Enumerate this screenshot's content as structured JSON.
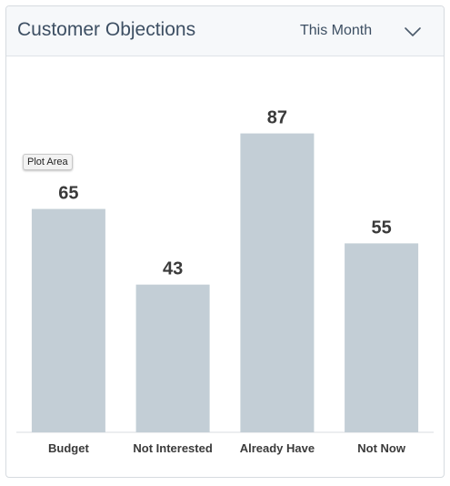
{
  "header": {
    "title": "Customer Objections",
    "period_selected": "This Month"
  },
  "icons": {
    "dropdown": "chevron-down-icon"
  },
  "tooltip": {
    "text": "Plot Area"
  },
  "colors": {
    "bar": "#c3ced6",
    "value_label": "#3a3a3a",
    "category_label": "#3a3a3a",
    "baseline": "#d9dde1"
  },
  "chart_data": {
    "type": "bar",
    "title": "Customer Objections",
    "categories": [
      "Budget",
      "Not Interested",
      "Already Have",
      "Not Now"
    ],
    "values": [
      65,
      43,
      87,
      55
    ],
    "xlabel": "",
    "ylabel": "",
    "ylim": [
      0,
      100
    ],
    "grid": false,
    "legend": "none",
    "data_labels": true
  }
}
